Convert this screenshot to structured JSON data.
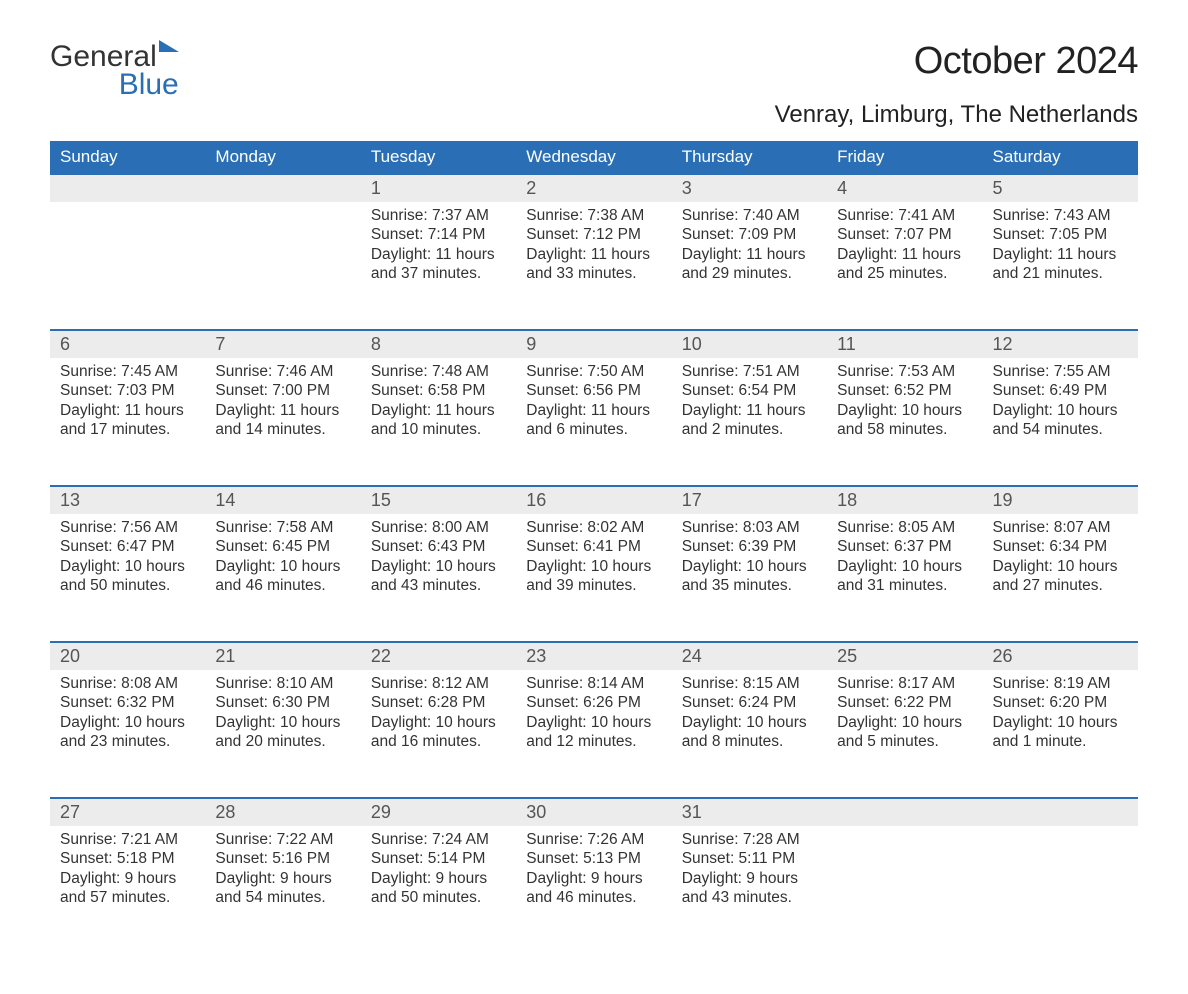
{
  "logo": {
    "part1": "General",
    "part2": "Blue"
  },
  "title": "October 2024",
  "location": "Venray, Limburg, The Netherlands",
  "weekdays": [
    "Sunday",
    "Monday",
    "Tuesday",
    "Wednesday",
    "Thursday",
    "Friday",
    "Saturday"
  ],
  "colors": {
    "header_bg": "#2a6fb5",
    "header_text": "#ffffff",
    "daynum_bg": "#ececec",
    "border": "#2a6fb5",
    "text": "#333333",
    "logo_blue": "#2a6fb5"
  },
  "typography": {
    "month_title_fontsize": 38,
    "location_fontsize": 24,
    "weekday_fontsize": 17,
    "daynum_fontsize": 18,
    "body_fontsize": 15.5
  },
  "weeks": [
    [
      null,
      null,
      {
        "n": "1",
        "sunrise": "7:37 AM",
        "sunset": "7:14 PM",
        "daylight": "11 hours and 37 minutes."
      },
      {
        "n": "2",
        "sunrise": "7:38 AM",
        "sunset": "7:12 PM",
        "daylight": "11 hours and 33 minutes."
      },
      {
        "n": "3",
        "sunrise": "7:40 AM",
        "sunset": "7:09 PM",
        "daylight": "11 hours and 29 minutes."
      },
      {
        "n": "4",
        "sunrise": "7:41 AM",
        "sunset": "7:07 PM",
        "daylight": "11 hours and 25 minutes."
      },
      {
        "n": "5",
        "sunrise": "7:43 AM",
        "sunset": "7:05 PM",
        "daylight": "11 hours and 21 minutes."
      }
    ],
    [
      {
        "n": "6",
        "sunrise": "7:45 AM",
        "sunset": "7:03 PM",
        "daylight": "11 hours and 17 minutes."
      },
      {
        "n": "7",
        "sunrise": "7:46 AM",
        "sunset": "7:00 PM",
        "daylight": "11 hours and 14 minutes."
      },
      {
        "n": "8",
        "sunrise": "7:48 AM",
        "sunset": "6:58 PM",
        "daylight": "11 hours and 10 minutes."
      },
      {
        "n": "9",
        "sunrise": "7:50 AM",
        "sunset": "6:56 PM",
        "daylight": "11 hours and 6 minutes."
      },
      {
        "n": "10",
        "sunrise": "7:51 AM",
        "sunset": "6:54 PM",
        "daylight": "11 hours and 2 minutes."
      },
      {
        "n": "11",
        "sunrise": "7:53 AM",
        "sunset": "6:52 PM",
        "daylight": "10 hours and 58 minutes."
      },
      {
        "n": "12",
        "sunrise": "7:55 AM",
        "sunset": "6:49 PM",
        "daylight": "10 hours and 54 minutes."
      }
    ],
    [
      {
        "n": "13",
        "sunrise": "7:56 AM",
        "sunset": "6:47 PM",
        "daylight": "10 hours and 50 minutes."
      },
      {
        "n": "14",
        "sunrise": "7:58 AM",
        "sunset": "6:45 PM",
        "daylight": "10 hours and 46 minutes."
      },
      {
        "n": "15",
        "sunrise": "8:00 AM",
        "sunset": "6:43 PM",
        "daylight": "10 hours and 43 minutes."
      },
      {
        "n": "16",
        "sunrise": "8:02 AM",
        "sunset": "6:41 PM",
        "daylight": "10 hours and 39 minutes."
      },
      {
        "n": "17",
        "sunrise": "8:03 AM",
        "sunset": "6:39 PM",
        "daylight": "10 hours and 35 minutes."
      },
      {
        "n": "18",
        "sunrise": "8:05 AM",
        "sunset": "6:37 PM",
        "daylight": "10 hours and 31 minutes."
      },
      {
        "n": "19",
        "sunrise": "8:07 AM",
        "sunset": "6:34 PM",
        "daylight": "10 hours and 27 minutes."
      }
    ],
    [
      {
        "n": "20",
        "sunrise": "8:08 AM",
        "sunset": "6:32 PM",
        "daylight": "10 hours and 23 minutes."
      },
      {
        "n": "21",
        "sunrise": "8:10 AM",
        "sunset": "6:30 PM",
        "daylight": "10 hours and 20 minutes."
      },
      {
        "n": "22",
        "sunrise": "8:12 AM",
        "sunset": "6:28 PM",
        "daylight": "10 hours and 16 minutes."
      },
      {
        "n": "23",
        "sunrise": "8:14 AM",
        "sunset": "6:26 PM",
        "daylight": "10 hours and 12 minutes."
      },
      {
        "n": "24",
        "sunrise": "8:15 AM",
        "sunset": "6:24 PM",
        "daylight": "10 hours and 8 minutes."
      },
      {
        "n": "25",
        "sunrise": "8:17 AM",
        "sunset": "6:22 PM",
        "daylight": "10 hours and 5 minutes."
      },
      {
        "n": "26",
        "sunrise": "8:19 AM",
        "sunset": "6:20 PM",
        "daylight": "10 hours and 1 minute."
      }
    ],
    [
      {
        "n": "27",
        "sunrise": "7:21 AM",
        "sunset": "5:18 PM",
        "daylight": "9 hours and 57 minutes."
      },
      {
        "n": "28",
        "sunrise": "7:22 AM",
        "sunset": "5:16 PM",
        "daylight": "9 hours and 54 minutes."
      },
      {
        "n": "29",
        "sunrise": "7:24 AM",
        "sunset": "5:14 PM",
        "daylight": "9 hours and 50 minutes."
      },
      {
        "n": "30",
        "sunrise": "7:26 AM",
        "sunset": "5:13 PM",
        "daylight": "9 hours and 46 minutes."
      },
      {
        "n": "31",
        "sunrise": "7:28 AM",
        "sunset": "5:11 PM",
        "daylight": "9 hours and 43 minutes."
      },
      null,
      null
    ]
  ],
  "labels": {
    "sunrise_prefix": "Sunrise: ",
    "sunset_prefix": "Sunset: ",
    "daylight_prefix": "Daylight: "
  }
}
